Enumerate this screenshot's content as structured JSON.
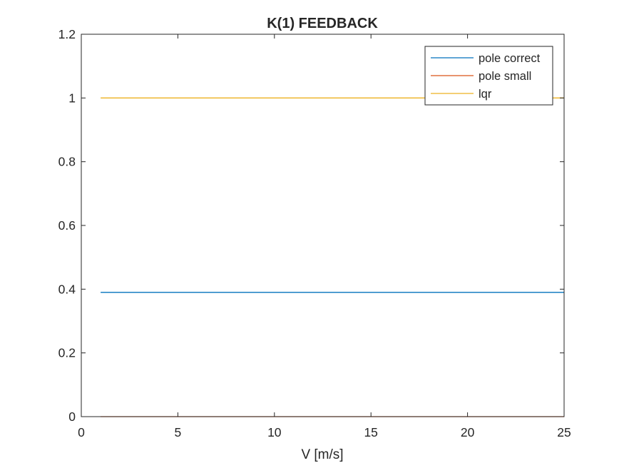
{
  "chart_data": {
    "type": "line",
    "title": "K(1) FEEDBACK",
    "xlabel": "V [m/s]",
    "ylabel": "",
    "xlim": [
      0,
      25
    ],
    "ylim": [
      0,
      1.2
    ],
    "xticks": [
      0,
      5,
      10,
      15,
      20,
      25
    ],
    "xtick_labels": [
      "0",
      "5",
      "10",
      "15",
      "20",
      "25"
    ],
    "yticks": [
      0,
      0.2,
      0.4,
      0.6,
      0.8,
      1.0,
      1.2
    ],
    "ytick_labels": [
      "0",
      "0.2",
      "0.4",
      "0.6",
      "0.8",
      "1",
      "1.2"
    ],
    "grid": false,
    "legend_position": "top-right",
    "series": [
      {
        "name": "pole correct",
        "color": "#0072BD",
        "x": [
          1,
          25
        ],
        "y": [
          0.39,
          0.39
        ]
      },
      {
        "name": "pole small",
        "color": "#D95319",
        "x": [
          1,
          25
        ],
        "y": [
          0.0,
          0.0
        ]
      },
      {
        "name": "lqr",
        "color": "#EDB120",
        "x": [
          1,
          25
        ],
        "y": [
          1.0,
          1.0
        ]
      }
    ]
  }
}
